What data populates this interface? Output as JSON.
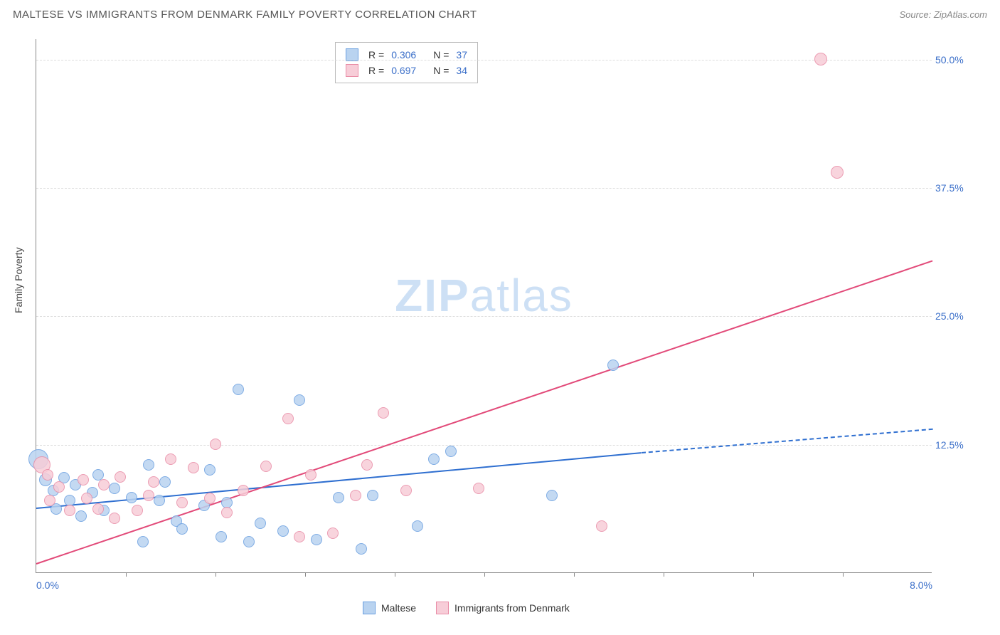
{
  "title": "MALTESE VS IMMIGRANTS FROM DENMARK FAMILY POVERTY CORRELATION CHART",
  "source": "Source: ZipAtlas.com",
  "ylabel": "Family Poverty",
  "watermark_a": "ZIP",
  "watermark_b": "atlas",
  "chart": {
    "type": "scatter",
    "xlim": [
      0,
      8
    ],
    "ylim": [
      0,
      52
    ],
    "x_axis_min_label": "0.0%",
    "x_axis_max_label": "8.0%",
    "y_ticks": [
      {
        "v": 12.5,
        "label": "12.5%"
      },
      {
        "v": 25.0,
        "label": "25.0%"
      },
      {
        "v": 37.5,
        "label": "37.5%"
      },
      {
        "v": 50.0,
        "label": "50.0%"
      }
    ],
    "x_tick_positions": [
      0.8,
      1.6,
      2.4,
      3.2,
      4.0,
      4.8,
      5.6,
      6.4,
      7.2
    ],
    "grid_color": "#dddddd",
    "axis_color": "#888888",
    "background_color": "#ffffff",
    "tick_label_color": "#3b6fc9"
  },
  "series": [
    {
      "name": "Maltese",
      "fill": "#b9d3f0",
      "stroke": "#6a9fe0",
      "line_color": "#2f6fd0",
      "r_value": "0.306",
      "n_value": "37",
      "trend": {
        "x1": 0,
        "y1": 6.4,
        "x2": 5.4,
        "y2": 11.8,
        "solid": true
      },
      "trend_ext": {
        "x1": 5.4,
        "y1": 11.8,
        "x2": 8.0,
        "y2": 14.1,
        "solid": false
      },
      "points": [
        {
          "x": 0.02,
          "y": 11.0,
          "r": 14
        },
        {
          "x": 0.08,
          "y": 9.0,
          "r": 9
        },
        {
          "x": 0.15,
          "y": 8.0,
          "r": 8
        },
        {
          "x": 0.18,
          "y": 6.2,
          "r": 8
        },
        {
          "x": 0.25,
          "y": 9.2,
          "r": 8
        },
        {
          "x": 0.3,
          "y": 7.0,
          "r": 8
        },
        {
          "x": 0.35,
          "y": 8.5,
          "r": 8
        },
        {
          "x": 0.4,
          "y": 5.5,
          "r": 8
        },
        {
          "x": 0.5,
          "y": 7.8,
          "r": 8
        },
        {
          "x": 0.55,
          "y": 9.5,
          "r": 8
        },
        {
          "x": 0.6,
          "y": 6.0,
          "r": 8
        },
        {
          "x": 0.7,
          "y": 8.2,
          "r": 8
        },
        {
          "x": 0.85,
          "y": 7.3,
          "r": 8
        },
        {
          "x": 0.95,
          "y": 3.0,
          "r": 8
        },
        {
          "x": 1.0,
          "y": 10.5,
          "r": 8
        },
        {
          "x": 1.1,
          "y": 7.0,
          "r": 8
        },
        {
          "x": 1.15,
          "y": 8.8,
          "r": 8
        },
        {
          "x": 1.25,
          "y": 5.0,
          "r": 8
        },
        {
          "x": 1.3,
          "y": 4.2,
          "r": 8
        },
        {
          "x": 1.5,
          "y": 6.5,
          "r": 8
        },
        {
          "x": 1.55,
          "y": 10.0,
          "r": 8
        },
        {
          "x": 1.65,
          "y": 3.5,
          "r": 8
        },
        {
          "x": 1.7,
          "y": 6.8,
          "r": 8
        },
        {
          "x": 1.8,
          "y": 17.8,
          "r": 8
        },
        {
          "x": 1.9,
          "y": 3.0,
          "r": 8
        },
        {
          "x": 2.0,
          "y": 4.8,
          "r": 8
        },
        {
          "x": 2.2,
          "y": 4.0,
          "r": 8
        },
        {
          "x": 2.35,
          "y": 16.8,
          "r": 8
        },
        {
          "x": 2.5,
          "y": 3.2,
          "r": 8
        },
        {
          "x": 2.7,
          "y": 7.3,
          "r": 8
        },
        {
          "x": 2.9,
          "y": 2.3,
          "r": 8
        },
        {
          "x": 3.0,
          "y": 7.5,
          "r": 8
        },
        {
          "x": 3.4,
          "y": 4.5,
          "r": 8
        },
        {
          "x": 3.55,
          "y": 11.0,
          "r": 8
        },
        {
          "x": 3.7,
          "y": 11.8,
          "r": 8
        },
        {
          "x": 4.6,
          "y": 7.5,
          "r": 8
        },
        {
          "x": 5.15,
          "y": 20.2,
          "r": 8
        }
      ]
    },
    {
      "name": "Immigrants from Denmark",
      "fill": "#f7cdd8",
      "stroke": "#e98ca6",
      "line_color": "#e24a79",
      "r_value": "0.697",
      "n_value": "34",
      "trend": {
        "x1": 0,
        "y1": 1.0,
        "x2": 8.0,
        "y2": 30.5,
        "solid": true
      },
      "points": [
        {
          "x": 0.05,
          "y": 10.5,
          "r": 12
        },
        {
          "x": 0.1,
          "y": 9.5,
          "r": 8
        },
        {
          "x": 0.12,
          "y": 7.0,
          "r": 8
        },
        {
          "x": 0.2,
          "y": 8.3,
          "r": 8
        },
        {
          "x": 0.3,
          "y": 6.0,
          "r": 8
        },
        {
          "x": 0.42,
          "y": 9.0,
          "r": 8
        },
        {
          "x": 0.45,
          "y": 7.2,
          "r": 8
        },
        {
          "x": 0.55,
          "y": 6.2,
          "r": 8
        },
        {
          "x": 0.6,
          "y": 8.5,
          "r": 8
        },
        {
          "x": 0.7,
          "y": 5.3,
          "r": 8
        },
        {
          "x": 0.75,
          "y": 9.3,
          "r": 8
        },
        {
          "x": 0.9,
          "y": 6.0,
          "r": 8
        },
        {
          "x": 1.0,
          "y": 7.5,
          "r": 8
        },
        {
          "x": 1.05,
          "y": 8.8,
          "r": 8
        },
        {
          "x": 1.2,
          "y": 11.0,
          "r": 8
        },
        {
          "x": 1.3,
          "y": 6.8,
          "r": 8
        },
        {
          "x": 1.4,
          "y": 10.2,
          "r": 8
        },
        {
          "x": 1.55,
          "y": 7.2,
          "r": 8
        },
        {
          "x": 1.6,
          "y": 12.5,
          "r": 8
        },
        {
          "x": 1.7,
          "y": 5.8,
          "r": 8
        },
        {
          "x": 1.85,
          "y": 8.0,
          "r": 8
        },
        {
          "x": 2.05,
          "y": 10.3,
          "r": 8
        },
        {
          "x": 2.25,
          "y": 15.0,
          "r": 8
        },
        {
          "x": 2.35,
          "y": 3.5,
          "r": 8
        },
        {
          "x": 2.45,
          "y": 9.5,
          "r": 8
        },
        {
          "x": 2.65,
          "y": 3.8,
          "r": 8
        },
        {
          "x": 2.85,
          "y": 7.5,
          "r": 8
        },
        {
          "x": 2.95,
          "y": 10.5,
          "r": 8
        },
        {
          "x": 3.1,
          "y": 15.5,
          "r": 8
        },
        {
          "x": 3.3,
          "y": 8.0,
          "r": 8
        },
        {
          "x": 3.95,
          "y": 8.2,
          "r": 8
        },
        {
          "x": 5.05,
          "y": 4.5,
          "r": 8
        },
        {
          "x": 7.0,
          "y": 50.0,
          "r": 9
        },
        {
          "x": 7.15,
          "y": 39.0,
          "r": 9
        }
      ]
    }
  ],
  "legend_bottom": [
    {
      "label": "Maltese",
      "fill": "#b9d3f0",
      "stroke": "#6a9fe0"
    },
    {
      "label": "Immigrants from Denmark",
      "fill": "#f7cdd8",
      "stroke": "#e98ca6"
    }
  ]
}
